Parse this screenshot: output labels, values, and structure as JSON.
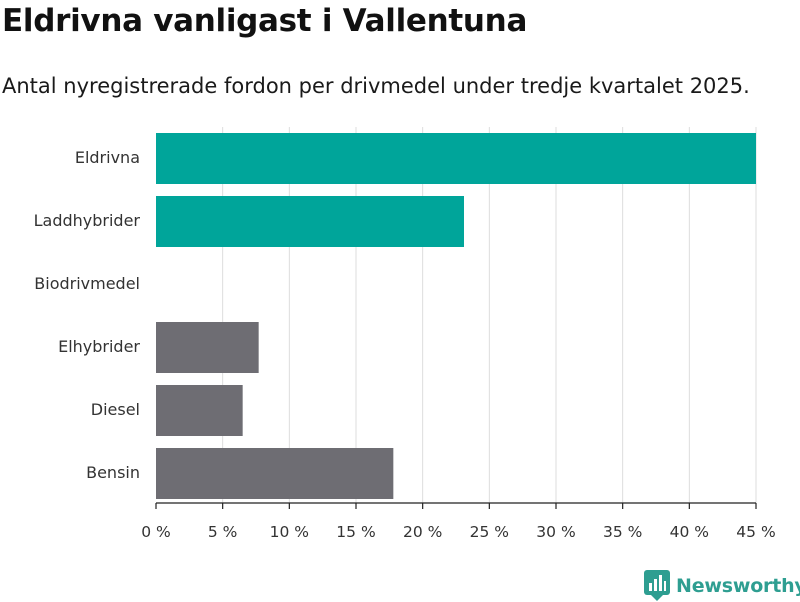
{
  "header": {
    "title": "Eldrivna vanligast i Vallentuna",
    "subtitle": "Antal nyregistrerade fordon per drivmedel under tredje kvartalet 2025."
  },
  "brand": {
    "name": "Newsworthy",
    "logo_icon": "newsworthy-chart-icon",
    "color": "#2e9e91"
  },
  "chart_data": {
    "type": "bar",
    "orientation": "horizontal",
    "categories": [
      "Eldrivna",
      "Laddhybrider",
      "Biodrivmedel",
      "Elhybrider",
      "Diesel",
      "Bensin"
    ],
    "values": [
      45,
      23.1,
      0,
      7.7,
      6.5,
      17.8
    ],
    "colors": [
      "#00a59a",
      "#00a59a",
      "#00a59a",
      "#6e6d73",
      "#6e6d73",
      "#6e6d73"
    ],
    "xlim": [
      0,
      45
    ],
    "xticks": [
      0,
      5,
      10,
      15,
      20,
      25,
      30,
      35,
      40,
      45
    ],
    "tick_labels": [
      "0 %",
      "5 %",
      "10 %",
      "15 %",
      "20 %",
      "25 %",
      "30 %",
      "35 %",
      "40 %",
      "45 %"
    ],
    "unit": "%",
    "grid": true,
    "legend": "none"
  }
}
